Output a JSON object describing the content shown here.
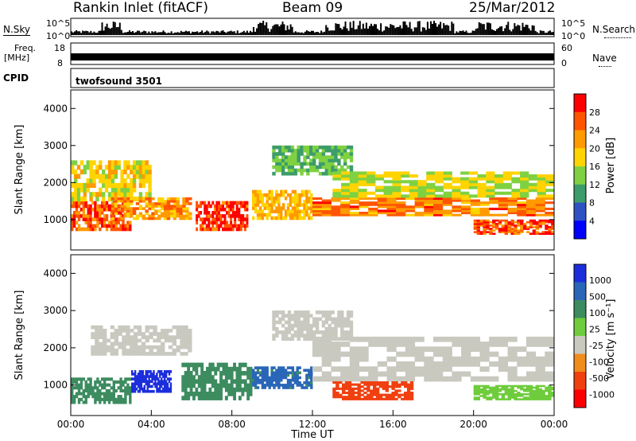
{
  "header": {
    "station": "Rankin Inlet (fitACF)",
    "beam": "Beam 09",
    "date": "25/Mar/2012"
  },
  "noise_panel": {
    "left_label": "N.Sky",
    "left_ticks": [
      "10^5",
      "10^0"
    ],
    "right_label": "N.Search",
    "right_ticks": [
      "10^5",
      "10^0"
    ]
  },
  "freq_panel": {
    "left_label_1": "Freq.",
    "left_label_2": "[MHz]",
    "left_ticks": [
      "18",
      "8"
    ],
    "right_label": "Nave",
    "right_ticks": [
      "60",
      "0"
    ]
  },
  "cpid": {
    "label": "CPID",
    "value": "twofsound 3501"
  },
  "colors": {
    "power": [
      "#0000ff",
      "#2e52c4",
      "#3c9c6a",
      "#7fd141",
      "#ffd400",
      "#ff9a00",
      "#ff5500",
      "#ff0000"
    ],
    "velocity": [
      "#1c2edc",
      "#2a66b8",
      "#3c8c60",
      "#6fcc3c",
      "#c9c9c0",
      "#f08c1c",
      "#f04010",
      "#ff0000"
    ]
  },
  "chart_data": [
    {
      "type": "heatmap",
      "name": "Power",
      "ylabel": "Slant Range [km]",
      "yticks": [
        1000,
        2000,
        3000,
        4000
      ],
      "ylim": [
        180,
        4500
      ],
      "xlim": [
        0,
        24
      ],
      "colorbar_label": "Power [dB]",
      "colorbar_ticks": [
        4,
        8,
        12,
        16,
        20,
        24,
        28
      ],
      "colorbar_range": [
        0,
        32
      ],
      "regions": [
        {
          "t0": 0.0,
          "t1": 3.0,
          "r0": 700,
          "r1": 1500,
          "v": 26
        },
        {
          "t0": 0.0,
          "t1": 4.0,
          "r0": 1500,
          "r1": 2600,
          "v": 18
        },
        {
          "t0": 2.0,
          "t1": 6.0,
          "r0": 1000,
          "r1": 1600,
          "v": 22
        },
        {
          "t0": 6.2,
          "t1": 8.8,
          "r0": 700,
          "r1": 1500,
          "v": 29
        },
        {
          "t0": 9.0,
          "t1": 12.0,
          "r0": 1000,
          "r1": 1800,
          "v": 20
        },
        {
          "t0": 10.0,
          "t1": 14.0,
          "r0": 2200,
          "r1": 3000,
          "v": 12
        },
        {
          "t0": 12.0,
          "t1": 24.0,
          "r0": 1100,
          "r1": 1600,
          "v": 24
        },
        {
          "t0": 13.0,
          "t1": 24.0,
          "r0": 1600,
          "r1": 2300,
          "v": 16
        },
        {
          "t0": 20.0,
          "t1": 24.0,
          "r0": 600,
          "r1": 1000,
          "v": 27
        }
      ]
    },
    {
      "type": "heatmap",
      "name": "Velocity",
      "ylabel": "Slant Range [km]",
      "yticks": [
        1000,
        2000,
        3000,
        4000
      ],
      "ylim": [
        180,
        4500
      ],
      "xlim": [
        0,
        24
      ],
      "xlabel": "Time UT",
      "xticks": [
        "00:00",
        "04:00",
        "08:00",
        "12:00",
        "16:00",
        "20:00",
        "00:00"
      ],
      "colorbar_label": "Velocity [m s⁻¹]",
      "colorbar_ticks": [
        "1000",
        "500",
        "100",
        "25",
        "-25",
        "-100",
        "-500",
        "-1000"
      ],
      "regions": [
        {
          "t0": 0.0,
          "t1": 3.0,
          "r0": 500,
          "r1": 1200,
          "v": 200
        },
        {
          "t0": 3.0,
          "t1": 5.0,
          "r0": 800,
          "r1": 1400,
          "v": 800
        },
        {
          "t0": 5.5,
          "t1": 9.0,
          "r0": 600,
          "r1": 1600,
          "v": 150
        },
        {
          "t0": 1.0,
          "t1": 6.0,
          "r0": 1800,
          "r1": 2600,
          "v": 0
        },
        {
          "t0": 9.0,
          "t1": 12.0,
          "r0": 900,
          "r1": 1500,
          "v": 300
        },
        {
          "t0": 10.0,
          "t1": 14.0,
          "r0": 2200,
          "r1": 3000,
          "v": 0
        },
        {
          "t0": 12.0,
          "t1": 24.0,
          "r0": 1100,
          "r1": 2300,
          "v": 0
        },
        {
          "t0": 13.0,
          "t1": 17.0,
          "r0": 600,
          "r1": 1100,
          "v": -300
        },
        {
          "t0": 20.0,
          "t1": 24.0,
          "r0": 600,
          "r1": 1000,
          "v": 80
        }
      ]
    }
  ]
}
